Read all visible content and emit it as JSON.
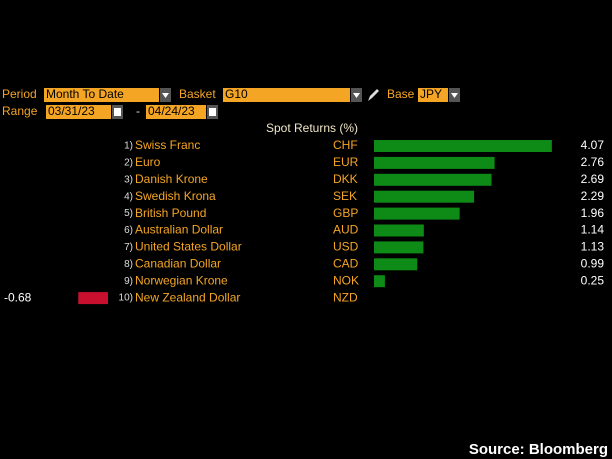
{
  "controls": {
    "period_label": "Period",
    "period": "Month To Date",
    "basket_label": "Basket",
    "basket": "G10",
    "base_label": "Base",
    "base": "JPY",
    "range_label": "Range",
    "start": "03/31/23",
    "range_separator": "-",
    "end": "04/24/23"
  },
  "chart_data": {
    "type": "bar",
    "title": "Spot Returns (%)",
    "ranks": [
      "1)",
      "2)",
      "3)",
      "4)",
      "5)",
      "6)",
      "7)",
      "8)",
      "9)",
      "10)"
    ],
    "categories": [
      "Swiss Franc",
      "Euro",
      "Danish Krone",
      "Swedish Krona",
      "British Pound",
      "Australian Dollar",
      "United States Dollar",
      "Canadian Dollar",
      "Norwegian Krone",
      "New Zealand Dollar"
    ],
    "codes": [
      "CHF",
      "EUR",
      "DKK",
      "SEK",
      "GBP",
      "AUD",
      "USD",
      "CAD",
      "NOK",
      "NZD"
    ],
    "values": [
      4.07,
      2.76,
      2.69,
      2.29,
      1.96,
      1.14,
      1.13,
      0.99,
      0.25,
      -0.68
    ],
    "color": "#0e8a16",
    "negative_color": "#c8102e"
  },
  "source": "Source: Bloomberg"
}
